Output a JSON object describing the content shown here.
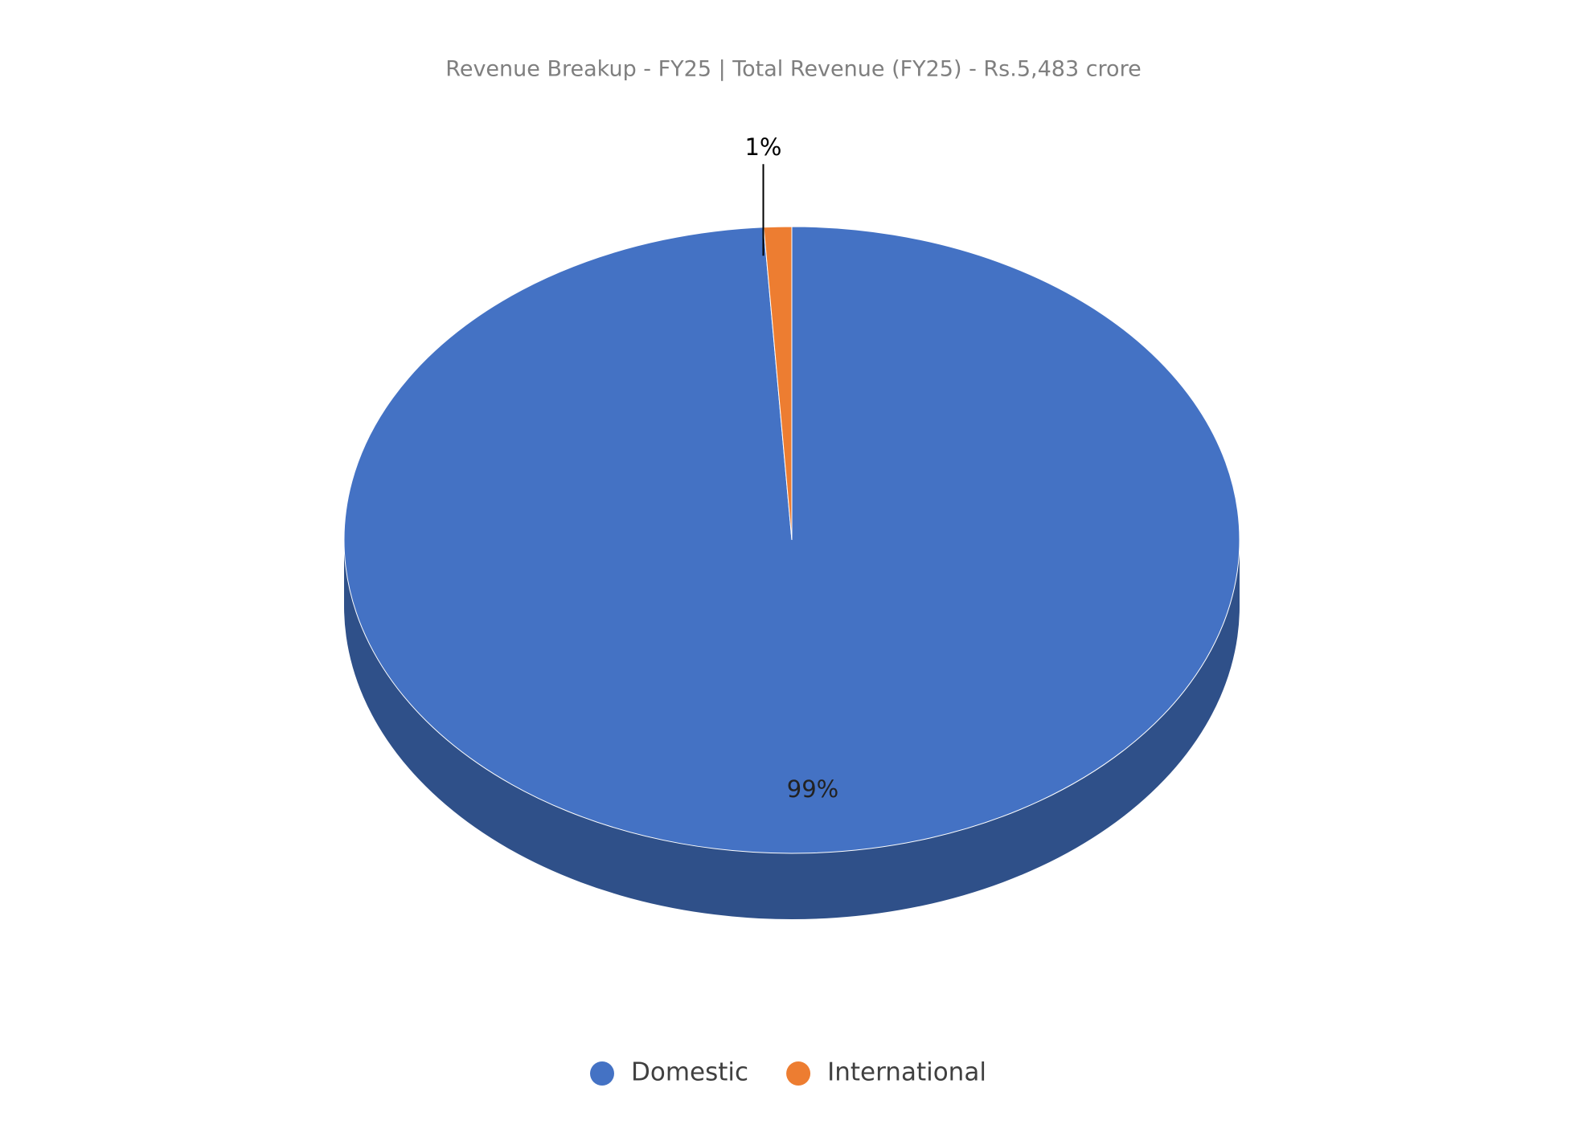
{
  "chart_data": {
    "type": "pie",
    "title": "Revenue Breakup - FY25 | Total Revenue (FY25) - Rs.5,483 crore",
    "categories": [
      "Domestic",
      "International"
    ],
    "values": [
      99,
      1
    ],
    "value_labels": [
      "99%",
      "1%"
    ],
    "colors": [
      "#4472c4",
      "#ed7d31"
    ],
    "side_colors": [
      "#2f5089",
      "#b05a20"
    ],
    "legend": "bottom"
  }
}
